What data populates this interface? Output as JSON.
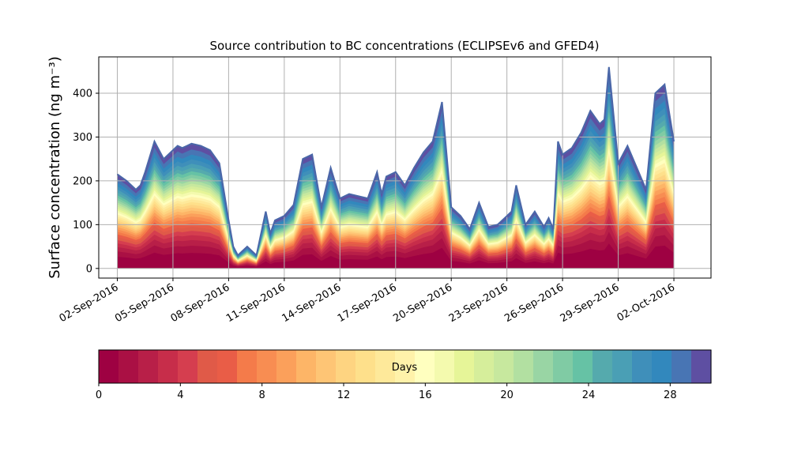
{
  "chart_data": [
    {
      "type": "area",
      "title": "Source contribution to BC concentrations (ECLIPSEv6 and GFED4)",
      "ylabel": "Surface concentration (ng m⁻³)",
      "xlabel": "",
      "grid": true,
      "x_ticks": [
        "02-Sep-2016",
        "05-Sep-2016",
        "08-Sep-2016",
        "11-Sep-2016",
        "14-Sep-2016",
        "17-Sep-2016",
        "20-Sep-2016",
        "23-Sep-2016",
        "26-Sep-2016",
        "29-Sep-2016",
        "02-Oct-2016"
      ],
      "y_ticks": [
        0,
        100,
        200,
        300,
        400
      ],
      "xlim": [
        "2016-09-01T00:00",
        "2016-10-04T00:00"
      ],
      "ylim": [
        -22,
        483
      ],
      "series_description": "Stacked contributions by source age (days 0-30); values below are the total (top envelope)",
      "total": {
        "x": [
          "2016-09-02T00:00",
          "2016-09-02T12:00",
          "2016-09-03T00:00",
          "2016-09-03T06:00",
          "2016-09-03T12:00",
          "2016-09-04T00:00",
          "2016-09-04T12:00",
          "2016-09-05T00:00",
          "2016-09-05T06:00",
          "2016-09-05T12:00",
          "2016-09-05T18:00",
          "2016-09-06T00:00",
          "2016-09-06T12:00",
          "2016-09-07T00:00",
          "2016-09-07T12:00",
          "2016-09-08T00:00",
          "2016-09-08T06:00",
          "2016-09-08T12:00",
          "2016-09-08T18:00",
          "2016-09-09T00:00",
          "2016-09-09T12:00",
          "2016-09-10T00:00",
          "2016-09-10T06:00",
          "2016-09-10T12:00",
          "2016-09-11T00:00",
          "2016-09-11T12:00",
          "2016-09-12T00:00",
          "2016-09-12T12:00",
          "2016-09-13T00:00",
          "2016-09-13T12:00",
          "2016-09-14T00:00",
          "2016-09-14T12:00",
          "2016-09-15T00:00",
          "2016-09-15T12:00",
          "2016-09-16T00:00",
          "2016-09-16T06:00",
          "2016-09-16T12:00",
          "2016-09-17T00:00",
          "2016-09-17T12:00",
          "2016-09-18T00:00",
          "2016-09-18T12:00",
          "2016-09-19T00:00",
          "2016-09-19T12:00",
          "2016-09-20T00:00",
          "2016-09-20T12:00",
          "2016-09-21T00:00",
          "2016-09-21T12:00",
          "2016-09-22T00:00",
          "2016-09-22T12:00",
          "2016-09-23T00:00",
          "2016-09-23T06:00",
          "2016-09-23T12:00",
          "2016-09-24T00:00",
          "2016-09-24T12:00",
          "2016-09-25T00:00",
          "2016-09-25T06:00",
          "2016-09-25T12:00",
          "2016-09-25T18:00",
          "2016-09-26T00:00",
          "2016-09-26T12:00",
          "2016-09-27T00:00",
          "2016-09-27T12:00",
          "2016-09-28T00:00",
          "2016-09-28T06:00",
          "2016-09-28T12:00",
          "2016-09-29T00:00",
          "2016-09-29T12:00",
          "2016-09-30T00:00",
          "2016-09-30T12:00",
          "2016-10-01T00:00",
          "2016-10-01T12:00",
          "2016-10-02T00:00"
        ],
        "y": [
          215,
          200,
          180,
          190,
          220,
          290,
          250,
          270,
          280,
          275,
          280,
          285,
          280,
          270,
          240,
          110,
          50,
          30,
          40,
          50,
          30,
          130,
          80,
          110,
          120,
          145,
          250,
          260,
          140,
          230,
          160,
          170,
          165,
          160,
          220,
          170,
          210,
          220,
          190,
          230,
          265,
          290,
          380,
          140,
          120,
          90,
          150,
          95,
          100,
          120,
          130,
          190,
          100,
          130,
          95,
          115,
          90,
          290,
          260,
          275,
          310,
          360,
          330,
          340,
          460,
          240,
          280,
          230,
          180,
          400,
          420,
          290
        ]
      }
    },
    {
      "type": "colorbar",
      "label": "Days",
      "ticks": [
        0,
        4,
        8,
        12,
        16,
        20,
        24,
        28
      ],
      "range": [
        0,
        30
      ],
      "colormap": "Spectral",
      "colors": [
        "#9e0142",
        "#aa1044",
        "#b81f48",
        "#c72d4a",
        "#d53e4f",
        "#e05a48",
        "#e95d47",
        "#f47b4a",
        "#f88d52",
        "#fba05b",
        "#fdb567",
        "#fec575",
        "#fed481",
        "#fee08b",
        "#fee99a",
        "#fff2aa",
        "#ffffbf",
        "#f4faae",
        "#e6f598",
        "#d6ee9b",
        "#c7e89e",
        "#b2e0a1",
        "#99d5a4",
        "#80cba4",
        "#66c2a5",
        "#55aaad",
        "#4a9fb5",
        "#3f8fba",
        "#3288bd",
        "#4875b4",
        "#5e4fa2"
      ]
    }
  ]
}
